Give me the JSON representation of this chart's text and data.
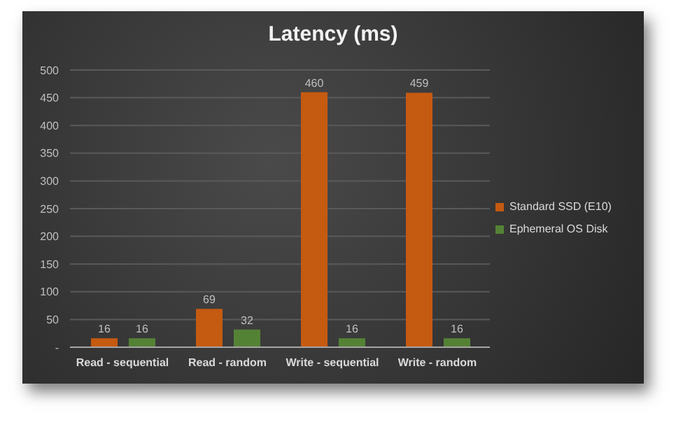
{
  "chart_data": {
    "type": "bar",
    "title": "Latency (ms)",
    "categories": [
      "Read - sequential",
      "Read - random",
      "Write - sequential",
      "Write - random"
    ],
    "series": [
      {
        "name": "Standard SSD (E10)",
        "color": "#c55a11",
        "values": [
          16,
          69,
          460,
          459
        ]
      },
      {
        "name": "Ephemeral OS Disk",
        "color": "#548235",
        "values": [
          16,
          32,
          16,
          16
        ]
      }
    ],
    "ylim": [
      0,
      500
    ],
    "yticks": [
      {
        "value": 0,
        "label": "-"
      },
      50,
      100,
      150,
      200,
      250,
      300,
      350,
      400,
      450,
      500
    ],
    "grid": "y",
    "legend": "right",
    "data_labels": true
  }
}
